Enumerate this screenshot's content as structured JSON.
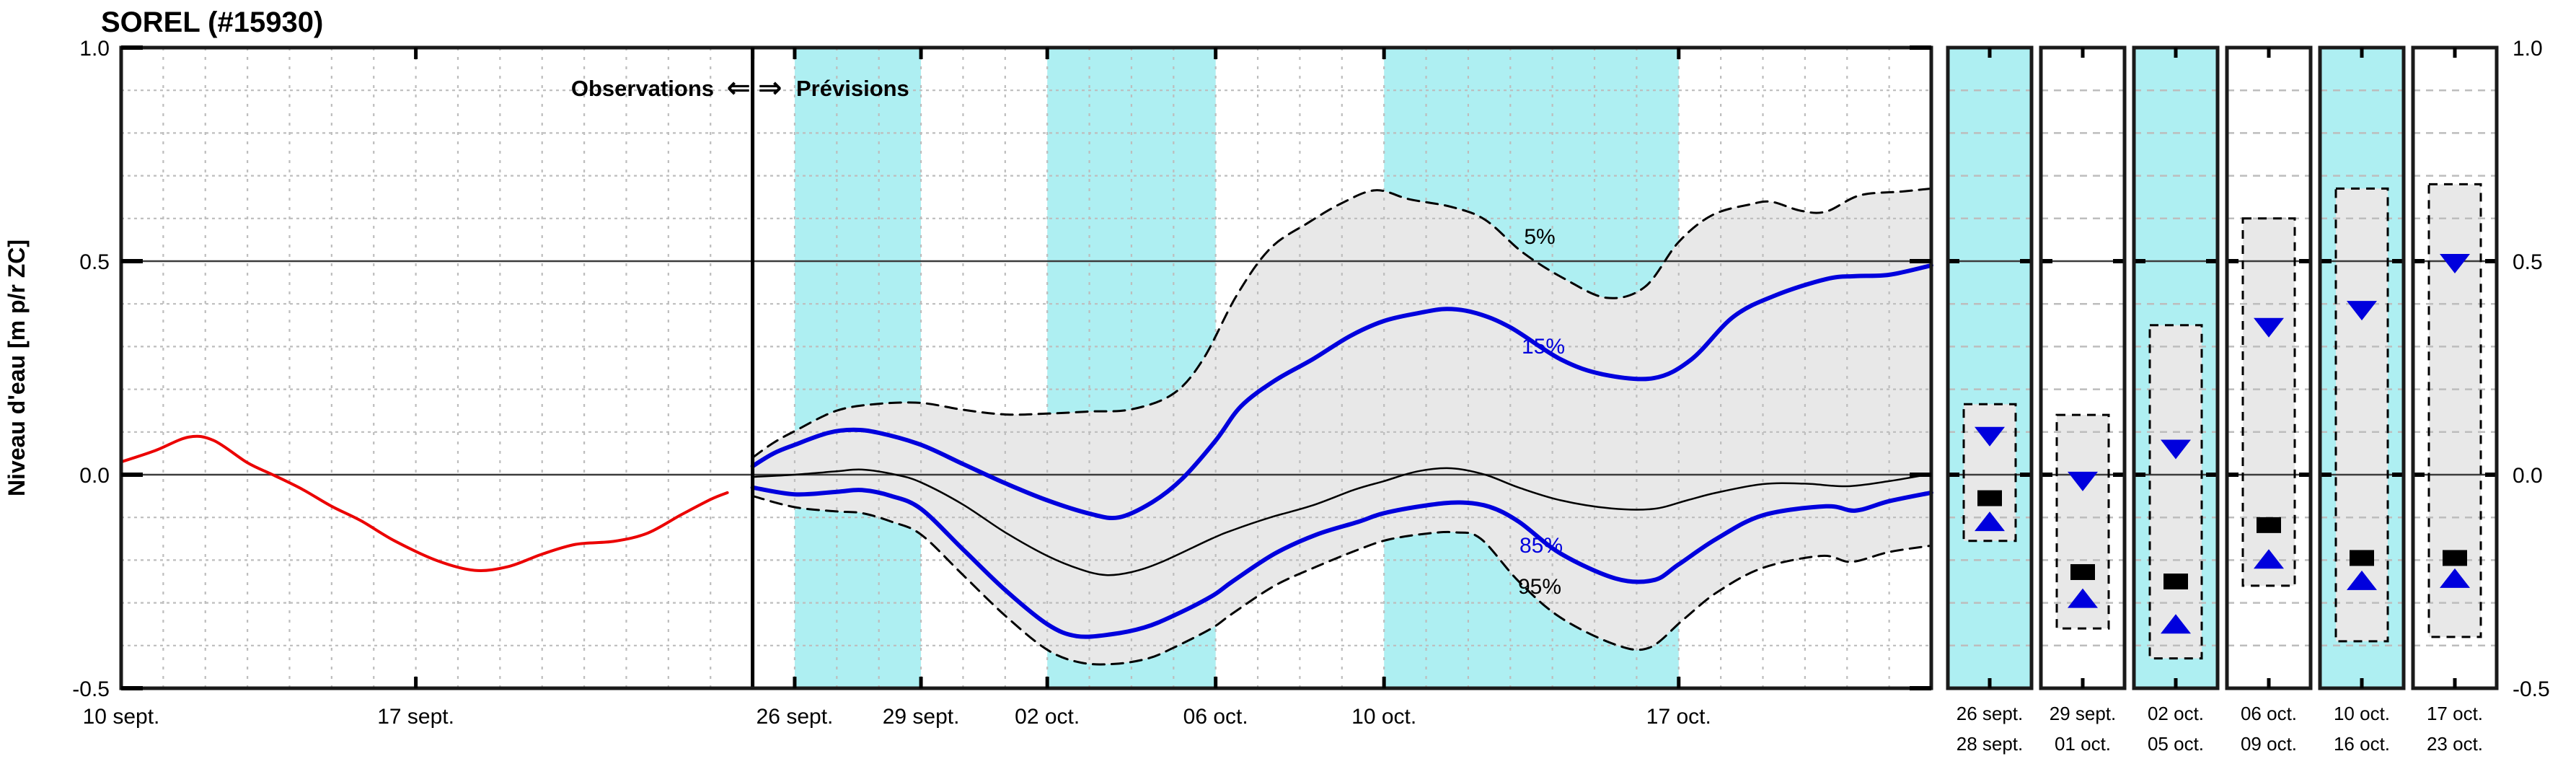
{
  "title": "SOREL (#15930)",
  "y_axis": {
    "label": "Niveau d'eau [m p/r ZC]",
    "range": [
      -0.5,
      1.0
    ],
    "ticks": [
      {
        "value": 1.0,
        "label": "1.0"
      },
      {
        "value": 0.5,
        "label": "0.5"
      },
      {
        "value": 0.0,
        "label": "0.0"
      },
      {
        "value": -0.5,
        "label": "-0.5"
      }
    ],
    "shown_on_both_sides": true
  },
  "x_axis": {
    "ticks": [
      {
        "day": 0,
        "label": "10 sept."
      },
      {
        "day": 7,
        "label": "17 sept."
      },
      {
        "day": 16,
        "label": "26 sept."
      },
      {
        "day": 19,
        "label": "29 sept."
      },
      {
        "day": 22,
        "label": "02 oct."
      },
      {
        "day": 26,
        "label": "06 oct."
      },
      {
        "day": 30,
        "label": "10 oct."
      },
      {
        "day": 37,
        "label": "17 oct."
      }
    ],
    "top_tick_days": [
      7,
      15,
      16,
      19,
      22,
      26,
      30,
      37
    ],
    "bottom_tick_days": [
      7,
      16,
      19,
      22,
      26,
      30,
      37
    ]
  },
  "annotations": {
    "observations": "Observations",
    "previsions": "Prévisions",
    "arrow_left": "⇐",
    "arrow_right": "⇒",
    "p5": "5%",
    "p15": "15%",
    "p85": "85%",
    "p95": "95%"
  },
  "colors": {
    "observation": "#EB0000",
    "percentile_blue": "#0000DD",
    "median": "#000000",
    "dashed_bound": "#000000",
    "band_fill": "#E8E8E8",
    "cyan_band": "#AEEFF2",
    "grid": "#BDBDBD",
    "reference_line": "#3C3C3C",
    "frame": "#1A1A1A"
  },
  "chart_data": {
    "type": "line",
    "title": "SOREL (#15930)",
    "xlabel": "",
    "ylabel": "Niveau d'eau [m p/r ZC]",
    "ylim": [
      -0.5,
      1.0
    ],
    "x_domain_days": 43,
    "x_origin_date": "10 sept.",
    "divider_day": 15,
    "grid": {
      "y_step": 0.1,
      "x_step_days": 1,
      "solid_y_lines": [
        0.5,
        0.0
      ]
    },
    "cyan_band_day_ranges": [
      [
        16,
        19
      ],
      [
        22,
        26
      ],
      [
        30,
        37
      ]
    ],
    "series": [
      {
        "name": "observations",
        "style": "solid-red",
        "points": [
          [
            0,
            0.03
          ],
          [
            0.8,
            0.056
          ],
          [
            1.6,
            0.088
          ],
          [
            2.2,
            0.08
          ],
          [
            3.0,
            0.028
          ],
          [
            3.6,
            0.0
          ],
          [
            4.3,
            -0.034
          ],
          [
            5.0,
            -0.074
          ],
          [
            5.7,
            -0.108
          ],
          [
            6.5,
            -0.155
          ],
          [
            7.5,
            -0.201
          ],
          [
            8.4,
            -0.224
          ],
          [
            9.2,
            -0.215
          ],
          [
            10.0,
            -0.186
          ],
          [
            10.8,
            -0.163
          ],
          [
            11.7,
            -0.156
          ],
          [
            12.5,
            -0.137
          ],
          [
            13.3,
            -0.094
          ],
          [
            14.0,
            -0.058
          ],
          [
            14.4,
            -0.042
          ]
        ]
      },
      {
        "name": "p5",
        "style": "dashed-black",
        "points": [
          [
            15,
            0.04
          ],
          [
            15.5,
            0.075
          ],
          [
            16,
            0.102
          ],
          [
            17,
            0.15
          ],
          [
            18,
            0.166
          ],
          [
            19,
            0.168
          ],
          [
            20,
            0.152
          ],
          [
            21,
            0.141
          ],
          [
            22,
            0.143
          ],
          [
            23,
            0.148
          ],
          [
            24,
            0.153
          ],
          [
            25,
            0.19
          ],
          [
            25.7,
            0.27
          ],
          [
            26.5,
            0.42
          ],
          [
            27.3,
            0.53
          ],
          [
            28.2,
            0.59
          ],
          [
            29,
            0.636
          ],
          [
            29.8,
            0.666
          ],
          [
            30.6,
            0.645
          ],
          [
            31.6,
            0.627
          ],
          [
            32.4,
            0.597
          ],
          [
            33.3,
            0.52
          ],
          [
            34.3,
            0.458
          ],
          [
            35.3,
            0.414
          ],
          [
            36.2,
            0.44
          ],
          [
            37,
            0.545
          ],
          [
            37.8,
            0.608
          ],
          [
            38.7,
            0.633
          ],
          [
            39.2,
            0.639
          ],
          [
            39.9,
            0.618
          ],
          [
            40.5,
            0.616
          ],
          [
            41.3,
            0.654
          ],
          [
            42.3,
            0.663
          ],
          [
            43,
            0.67
          ]
        ]
      },
      {
        "name": "p15",
        "style": "solid-blue",
        "points": [
          [
            15,
            0.02
          ],
          [
            15.5,
            0.05
          ],
          [
            16,
            0.07
          ],
          [
            16.8,
            0.098
          ],
          [
            17.4,
            0.105
          ],
          [
            18,
            0.098
          ],
          [
            19,
            0.07
          ],
          [
            20,
            0.025
          ],
          [
            21,
            -0.02
          ],
          [
            22,
            -0.06
          ],
          [
            23,
            -0.091
          ],
          [
            23.7,
            -0.1
          ],
          [
            24.5,
            -0.064
          ],
          [
            25.2,
            -0.01
          ],
          [
            26,
            0.08
          ],
          [
            26.6,
            0.16
          ],
          [
            27.4,
            0.22
          ],
          [
            28.3,
            0.27
          ],
          [
            29.2,
            0.325
          ],
          [
            30,
            0.36
          ],
          [
            30.8,
            0.378
          ],
          [
            31.5,
            0.388
          ],
          [
            32.2,
            0.378
          ],
          [
            33,
            0.345
          ],
          [
            34.2,
            0.27
          ],
          [
            35.2,
            0.235
          ],
          [
            36.4,
            0.226
          ],
          [
            37.3,
            0.27
          ],
          [
            38.3,
            0.37
          ],
          [
            39.3,
            0.42
          ],
          [
            40.5,
            0.458
          ],
          [
            41.2,
            0.465
          ],
          [
            42,
            0.468
          ],
          [
            43,
            0.49
          ]
        ]
      },
      {
        "name": "median",
        "style": "solid-black-thin",
        "points": [
          [
            15,
            -0.005
          ],
          [
            16,
            0.0
          ],
          [
            17,
            0.008
          ],
          [
            17.6,
            0.012
          ],
          [
            18.4,
            0.0
          ],
          [
            19,
            -0.018
          ],
          [
            20,
            -0.07
          ],
          [
            21,
            -0.135
          ],
          [
            22,
            -0.19
          ],
          [
            22.8,
            -0.222
          ],
          [
            23.4,
            -0.235
          ],
          [
            24,
            -0.228
          ],
          [
            24.7,
            -0.205
          ],
          [
            25.9,
            -0.15
          ],
          [
            26.4,
            -0.13
          ],
          [
            27.3,
            -0.1
          ],
          [
            28.3,
            -0.072
          ],
          [
            29.3,
            -0.035
          ],
          [
            30,
            -0.015
          ],
          [
            30.8,
            0.008
          ],
          [
            31.6,
            0.015
          ],
          [
            32.4,
            0.0
          ],
          [
            33.2,
            -0.03
          ],
          [
            34.2,
            -0.06
          ],
          [
            35.4,
            -0.079
          ],
          [
            36.4,
            -0.08
          ],
          [
            37.2,
            -0.06
          ],
          [
            37.9,
            -0.042
          ],
          [
            39,
            -0.022
          ],
          [
            40,
            -0.021
          ],
          [
            41,
            -0.027
          ],
          [
            42,
            -0.015
          ],
          [
            43,
            0.002
          ]
        ]
      },
      {
        "name": "p85",
        "style": "solid-blue",
        "points": [
          [
            15,
            -0.03
          ],
          [
            16,
            -0.046
          ],
          [
            17,
            -0.04
          ],
          [
            17.6,
            -0.036
          ],
          [
            18.3,
            -0.05
          ],
          [
            19,
            -0.08
          ],
          [
            20,
            -0.175
          ],
          [
            21,
            -0.27
          ],
          [
            22,
            -0.35
          ],
          [
            22.7,
            -0.378
          ],
          [
            23.5,
            -0.374
          ],
          [
            24.3,
            -0.358
          ],
          [
            25,
            -0.33
          ],
          [
            25.9,
            -0.285
          ],
          [
            26.4,
            -0.25
          ],
          [
            27.4,
            -0.185
          ],
          [
            28.4,
            -0.14
          ],
          [
            29.4,
            -0.11
          ],
          [
            30,
            -0.09
          ],
          [
            31,
            -0.072
          ],
          [
            31.8,
            -0.065
          ],
          [
            32.5,
            -0.075
          ],
          [
            33.2,
            -0.11
          ],
          [
            34.2,
            -0.185
          ],
          [
            35.5,
            -0.243
          ],
          [
            36.4,
            -0.247
          ],
          [
            37,
            -0.21
          ],
          [
            37.9,
            -0.15
          ],
          [
            39,
            -0.095
          ],
          [
            40.5,
            -0.074
          ],
          [
            41.2,
            -0.084
          ],
          [
            42,
            -0.062
          ],
          [
            43,
            -0.042
          ]
        ]
      },
      {
        "name": "p95",
        "style": "dashed-black",
        "points": [
          [
            15,
            -0.05
          ],
          [
            16,
            -0.076
          ],
          [
            17,
            -0.086
          ],
          [
            17.6,
            -0.09
          ],
          [
            18.3,
            -0.11
          ],
          [
            19,
            -0.14
          ],
          [
            20,
            -0.235
          ],
          [
            21,
            -0.33
          ],
          [
            22,
            -0.41
          ],
          [
            22.8,
            -0.44
          ],
          [
            23.6,
            -0.443
          ],
          [
            24.4,
            -0.43
          ],
          [
            25,
            -0.405
          ],
          [
            25.9,
            -0.36
          ],
          [
            26.4,
            -0.325
          ],
          [
            27.4,
            -0.26
          ],
          [
            28.4,
            -0.215
          ],
          [
            29.4,
            -0.175
          ],
          [
            30.1,
            -0.152
          ],
          [
            31,
            -0.138
          ],
          [
            31.7,
            -0.135
          ],
          [
            32.3,
            -0.15
          ],
          [
            33.2,
            -0.25
          ],
          [
            34.2,
            -0.335
          ],
          [
            35.5,
            -0.398
          ],
          [
            36.3,
            -0.405
          ],
          [
            37.1,
            -0.34
          ],
          [
            37.9,
            -0.276
          ],
          [
            39,
            -0.218
          ],
          [
            40.4,
            -0.19
          ],
          [
            41.1,
            -0.204
          ],
          [
            42,
            -0.181
          ],
          [
            43,
            -0.166
          ]
        ]
      }
    ],
    "panels": [
      {
        "label_line1": "26 sept.",
        "label_line2": "28 sept.",
        "background": "cyan",
        "box_top": 0.165,
        "box_bottom": -0.155,
        "tri_down": 0.09,
        "square": -0.055,
        "tri_up": -0.11
      },
      {
        "label_line1": "29 sept.",
        "label_line2": "01 oct.",
        "background": "white",
        "box_top": 0.14,
        "box_bottom": -0.36,
        "tri_down": -0.015,
        "square": -0.228,
        "tri_up": -0.29
      },
      {
        "label_line1": "02 oct.",
        "label_line2": "05 oct.",
        "background": "cyan",
        "box_top": 0.35,
        "box_bottom": -0.43,
        "tri_down": 0.06,
        "square": -0.25,
        "tri_up": -0.35
      },
      {
        "label_line1": "06 oct.",
        "label_line2": "09 oct.",
        "background": "white",
        "box_top": 0.6,
        "box_bottom": -0.26,
        "tri_down": 0.345,
        "square": -0.118,
        "tri_up": -0.198
      },
      {
        "label_line1": "10 oct.",
        "label_line2": "16 oct.",
        "background": "cyan",
        "box_top": 0.67,
        "box_bottom": -0.39,
        "tri_down": 0.385,
        "square": -0.195,
        "tri_up": -0.248
      },
      {
        "label_line1": "17 oct.",
        "label_line2": "23 oct.",
        "background": "white",
        "box_top": 0.68,
        "box_bottom": -0.38,
        "tri_down": 0.495,
        "square": -0.195,
        "tri_up": -0.243
      }
    ]
  }
}
